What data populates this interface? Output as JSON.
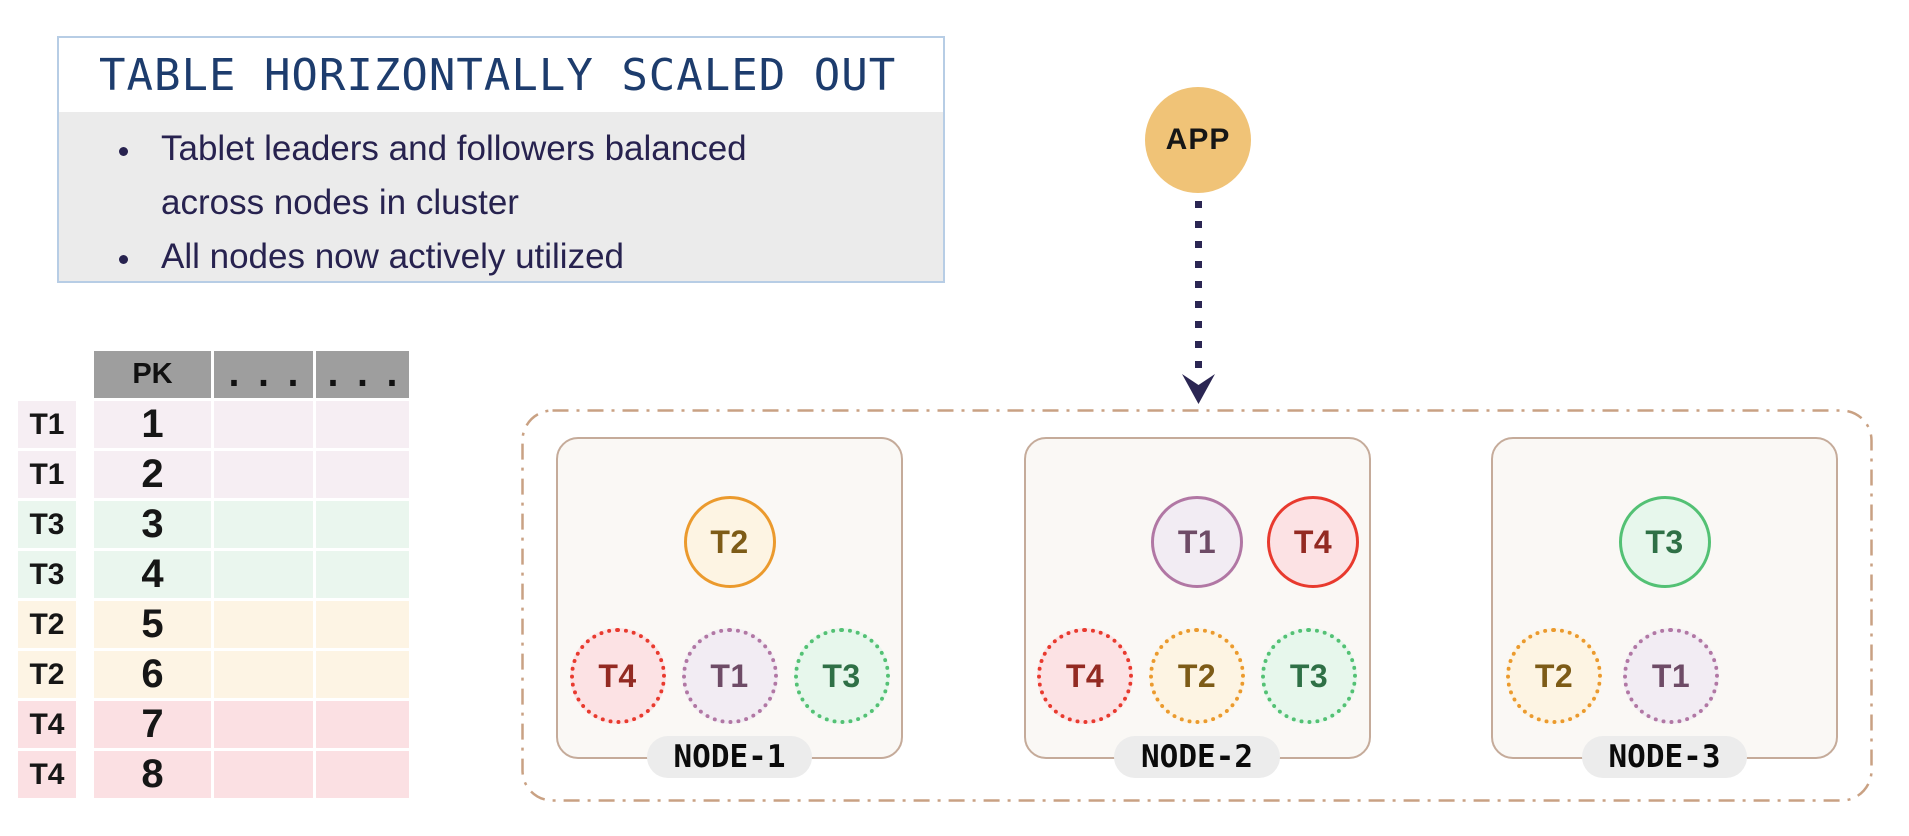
{
  "info_box": {
    "title": "TABLE HORIZONTALLY SCALED OUT",
    "bullets": [
      "Tablet leaders and followers balanced across nodes in cluster",
      "All nodes now actively utilized"
    ]
  },
  "app": {
    "label": "APP"
  },
  "table": {
    "headers": [
      "PK",
      "...",
      "..."
    ],
    "rows": [
      {
        "tablet": "T1",
        "pk": "1"
      },
      {
        "tablet": "T1",
        "pk": "2"
      },
      {
        "tablet": "T3",
        "pk": "3"
      },
      {
        "tablet": "T3",
        "pk": "4"
      },
      {
        "tablet": "T2",
        "pk": "5"
      },
      {
        "tablet": "T2",
        "pk": "6"
      },
      {
        "tablet": "T4",
        "pk": "7"
      },
      {
        "tablet": "T4",
        "pk": "8"
      }
    ]
  },
  "cluster": {
    "nodes": [
      {
        "label": "NODE-1",
        "leaders": [
          "T2"
        ],
        "followers": [
          "T4",
          "T1",
          "T3"
        ]
      },
      {
        "label": "NODE-2",
        "leaders": [
          "T1",
          "T4"
        ],
        "followers": [
          "T4",
          "T2",
          "T3"
        ]
      },
      {
        "label": "NODE-3",
        "leaders": [
          "T3"
        ],
        "followers": [
          "T2",
          "T1"
        ]
      }
    ]
  },
  "colors": {
    "tablets": {
      "T1": {
        "border": "#b177a4",
        "fill": "#f2ecf3",
        "text": "#6e4b66",
        "row": "#f6eef3"
      },
      "T2": {
        "border": "#eb9a2d",
        "fill": "#fdf4e3",
        "text": "#7d5b17",
        "row": "#fdf4e4"
      },
      "T3": {
        "border": "#53c174",
        "fill": "#e7f7ec",
        "text": "#2f7046",
        "row": "#eaf6ee"
      },
      "T4": {
        "border": "#e83a2e",
        "fill": "#fce2e4",
        "text": "#932a22",
        "row": "#fbe0e3"
      }
    },
    "app_circle": "#f0c377",
    "arrow": "#2b2653",
    "node_border": "#c5ab9a",
    "node_fill": "#faf8f5",
    "cluster_border": "#c9a183",
    "header_bg": "#9e9e9e",
    "pill_bg": "#ececec",
    "info_border": "#b7cde5",
    "info_body_bg": "#ebebeb",
    "title_text": "#1d3c6d",
    "bullet_text": "#27224f"
  }
}
